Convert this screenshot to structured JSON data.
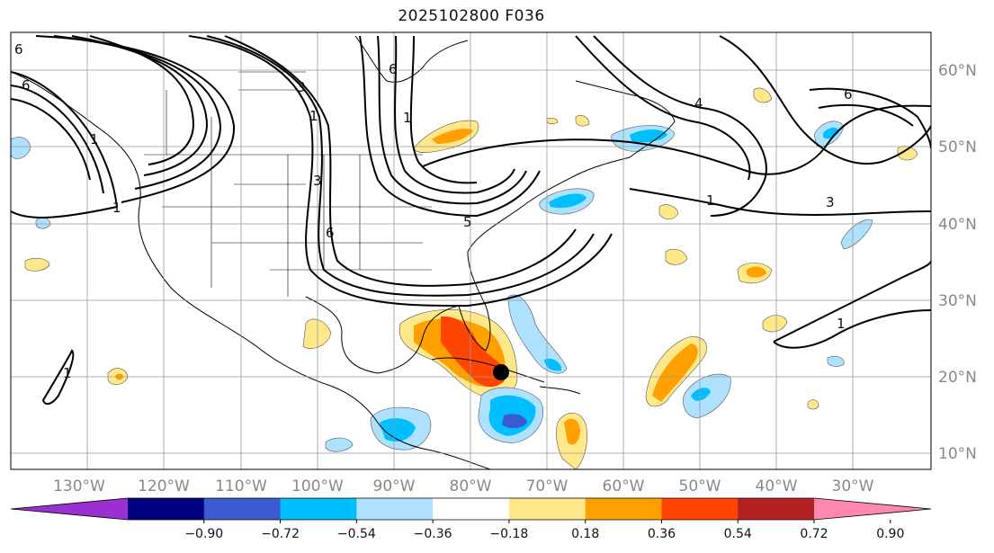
{
  "title": "2025102800 F036",
  "lon_labels": [
    "130°W",
    "120°W",
    "110°W",
    "100°W",
    "90°W",
    "80°W",
    "70°W",
    "60°W",
    "50°W",
    "40°W",
    "30°W"
  ],
  "lat_labels": [
    "60°N",
    "50°N",
    "40°N",
    "30°N",
    "20°N",
    "10°N"
  ],
  "colorbar": {
    "ticks": [
      "−0.90",
      "−0.72",
      "−0.54",
      "−0.36",
      "−0.18",
      "0.18",
      "0.36",
      "0.54",
      "0.72",
      "0.90"
    ],
    "colors": [
      "#9a30d0",
      "#000080",
      "#3a5cd0",
      "#00bfff",
      "#aee0ff",
      "#ffffff",
      "#ffe88a",
      "#ffa000",
      "#ff4500",
      "#b22222",
      "#ff88b0"
    ]
  },
  "contour_labels": [
    "6",
    "1",
    "3",
    "6",
    "1",
    "3",
    "6",
    "1",
    "5",
    "6",
    "1",
    "4",
    "6",
    "1",
    "1",
    "3",
    "1"
  ],
  "storm_marker": "storm-center"
}
